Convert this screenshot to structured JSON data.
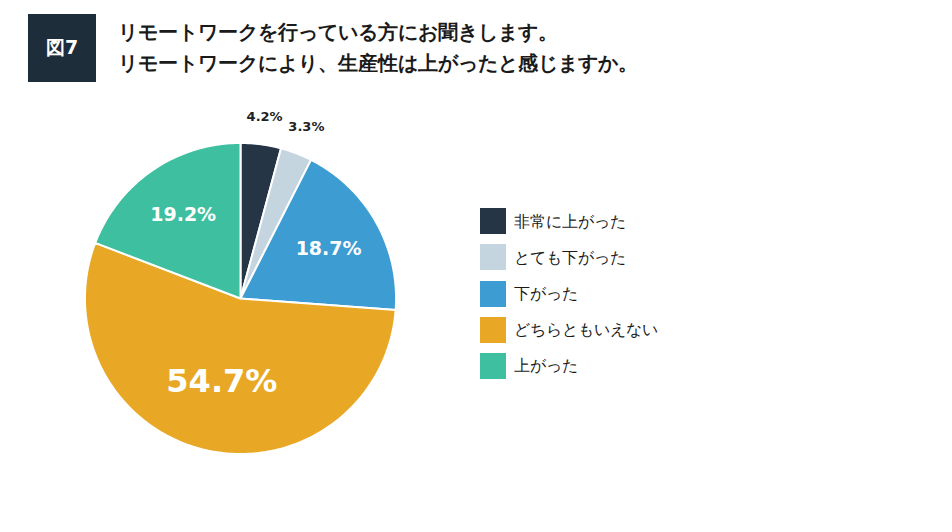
{
  "chart_data": {
    "type": "pie",
    "title": "リモートワークを行っている方にお聞きします。",
    "subtitle": "リモートワークにより、生産性は上がったと感じますか。",
    "annotations": [
      "図7"
    ],
    "categories": [
      "非常に上がった",
      "とても下がった",
      "下がった",
      "どちらともいえない",
      "上がった"
    ],
    "values": [
      4.2,
      3.3,
      18.7,
      54.7,
      19.2
    ],
    "value_labels": [
      "4.2%",
      "3.3%",
      "18.7%",
      "54.7%",
      "19.2%"
    ],
    "colors": [
      "#253545",
      "#c5d5e0",
      "#3d9cd2",
      "#e8a825",
      "#3dbfa0"
    ],
    "data_labels": true,
    "legend": "right"
  }
}
